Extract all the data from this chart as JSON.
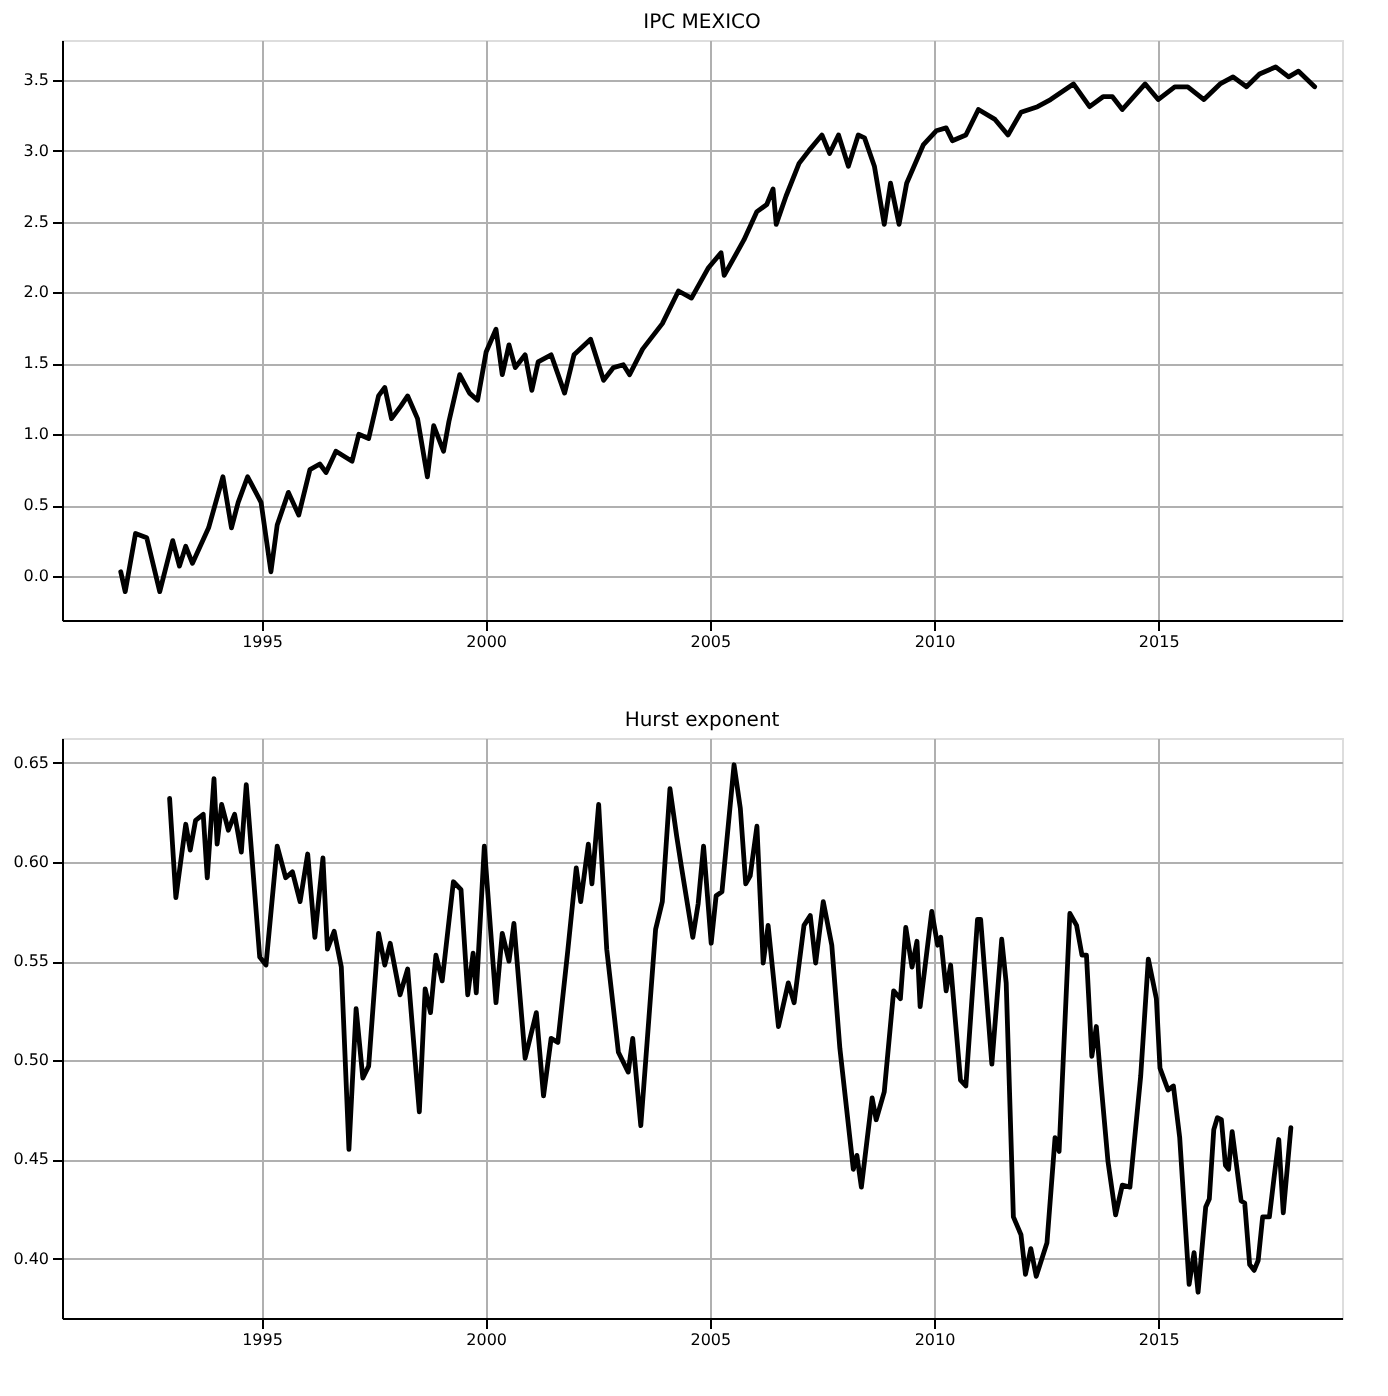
{
  "chart_data": [
    {
      "type": "line",
      "title": "IPC MEXICO",
      "grid": true,
      "xlim": [
        1990.55,
        2019.1
      ],
      "ylim": [
        -0.31,
        3.78
      ],
      "xticks": [
        1995,
        2000,
        2005,
        2010,
        2015
      ],
      "yticks": [
        {
          "value": 0,
          "label": "0.0"
        },
        {
          "value": 0.5,
          "label": "0.5"
        },
        {
          "value": 1,
          "label": "1.0"
        },
        {
          "value": 1.5,
          "label": "1.5"
        },
        {
          "value": 2,
          "label": "2.0"
        },
        {
          "value": 2.5,
          "label": "2.5"
        },
        {
          "value": 3,
          "label": "3.0"
        },
        {
          "value": 3.5,
          "label": "3.5"
        }
      ],
      "x": [
        1991.86,
        1991.96,
        1992.19,
        1992.44,
        1992.73,
        1993.02,
        1993.17,
        1993.31,
        1993.46,
        1993.82,
        1994.14,
        1994.33,
        1994.48,
        1994.69,
        1994.99,
        1995.21,
        1995.35,
        1995.6,
        1995.83,
        1996.08,
        1996.3,
        1996.44,
        1996.66,
        1997.02,
        1997.17,
        1997.39,
        1997.61,
        1997.75,
        1997.9,
        1998.11,
        1998.26,
        1998.48,
        1998.7,
        1998.84,
        1999.06,
        1999.18,
        1999.42,
        1999.64,
        1999.82,
        2000.01,
        2000.23,
        2000.37,
        2000.52,
        2000.66,
        2000.88,
        2001.03,
        2001.17,
        2001.46,
        2001.76,
        2001.97,
        2002.34,
        2002.63,
        2002.85,
        2003.07,
        2003.21,
        2003.5,
        2003.94,
        2004.3,
        2004.59,
        2004.96,
        2005.25,
        2005.32,
        2005.76,
        2006.05,
        2006.27,
        2006.41,
        2006.48,
        2006.7,
        2006.99,
        2007.21,
        2007.5,
        2007.67,
        2007.87,
        2008.09,
        2008.31,
        2008.45,
        2008.67,
        2008.89,
        2009.03,
        2009.22,
        2009.39,
        2009.76,
        2010.05,
        2010.27,
        2010.41,
        2010.71,
        2010.99,
        2011.36,
        2011.65,
        2011.94,
        2012.31,
        2012.6,
        2013.11,
        2013.47,
        2013.77,
        2013.98,
        2014.2,
        2014.71,
        2015.0,
        2015.37,
        2015.66,
        2016.02,
        2016.38,
        2016.67,
        2016.97,
        2017.26,
        2017.62,
        2017.91,
        2018.13,
        2018.49
      ],
      "series": [
        {
          "color": "#000000",
          "values": [
            0.03,
            -0.11,
            0.3,
            0.27,
            -0.11,
            0.25,
            0.07,
            0.21,
            0.09,
            0.34,
            0.7,
            0.34,
            0.52,
            0.7,
            0.52,
            0.03,
            0.36,
            0.59,
            0.43,
            0.75,
            0.79,
            0.73,
            0.88,
            0.81,
            1.0,
            0.97,
            1.27,
            1.33,
            1.11,
            1.2,
            1.27,
            1.11,
            0.7,
            1.06,
            0.88,
            1.09,
            1.42,
            1.29,
            1.24,
            1.58,
            1.74,
            1.42,
            1.63,
            1.47,
            1.56,
            1.31,
            1.51,
            1.56,
            1.29,
            1.56,
            1.67,
            1.38,
            1.47,
            1.49,
            1.42,
            1.6,
            1.78,
            2.01,
            1.96,
            2.17,
            2.28,
            2.12,
            2.37,
            2.57,
            2.62,
            2.73,
            2.48,
            2.68,
            2.91,
            3.0,
            3.11,
            2.98,
            3.11,
            2.89,
            3.11,
            3.09,
            2.89,
            2.48,
            2.77,
            2.48,
            2.77,
            3.04,
            3.14,
            3.16,
            3.07,
            3.11,
            3.29,
            3.22,
            3.11,
            3.27,
            3.31,
            3.36,
            3.47,
            3.31,
            3.38,
            3.38,
            3.29,
            3.47,
            3.36,
            3.45,
            3.45,
            3.36,
            3.47,
            3.52,
            3.45,
            3.54,
            3.59,
            3.52,
            3.56,
            3.45
          ]
        }
      ]
    },
    {
      "type": "line",
      "title": "Hurst exponent",
      "grid": true,
      "xlim": [
        1990.55,
        2019.1
      ],
      "ylim": [
        0.37,
        0.6625
      ],
      "xticks": [
        1995,
        2000,
        2005,
        2010,
        2015
      ],
      "yticks": [
        {
          "value": 0.4,
          "label": "0.40"
        },
        {
          "value": 0.45,
          "label": "0.45"
        },
        {
          "value": 0.5,
          "label": "0.50"
        },
        {
          "value": 0.55,
          "label": "0.55"
        },
        {
          "value": 0.6,
          "label": "0.60"
        },
        {
          "value": 0.65,
          "label": "0.65"
        }
      ],
      "x": [
        1992.95,
        1993.09,
        1993.31,
        1993.41,
        1993.53,
        1993.7,
        1993.79,
        1993.94,
        1994.01,
        1994.11,
        1994.26,
        1994.4,
        1994.55,
        1994.66,
        1994.96,
        1995.1,
        1995.35,
        1995.54,
        1995.69,
        1995.86,
        1996.03,
        1996.19,
        1996.37,
        1996.47,
        1996.62,
        1996.78,
        1996.95,
        1997.11,
        1997.26,
        1997.39,
        1997.61,
        1997.75,
        1997.87,
        1998.09,
        1998.26,
        1998.52,
        1998.65,
        1998.77,
        1998.89,
        1999.03,
        1999.28,
        1999.45,
        1999.6,
        1999.72,
        1999.79,
        1999.97,
        2000.23,
        2000.37,
        2000.52,
        2000.63,
        2000.88,
        2001.13,
        2001.29,
        2001.46,
        2001.61,
        2001.83,
        2002.02,
        2002.12,
        2002.29,
        2002.37,
        2002.52,
        2002.7,
        2002.96,
        2003.18,
        2003.28,
        2003.46,
        2003.79,
        2003.94,
        2004.11,
        2004.26,
        2004.37,
        2004.62,
        2004.74,
        2004.86,
        2005.03,
        2005.14,
        2005.27,
        2005.54,
        2005.68,
        2005.8,
        2005.9,
        2006.05,
        2006.19,
        2006.3,
        2006.53,
        2006.75,
        2006.88,
        2007.1,
        2007.24,
        2007.36,
        2007.53,
        2007.72,
        2007.9,
        2008.2,
        2008.28,
        2008.38,
        2008.62,
        2008.71,
        2008.89,
        2009.1,
        2009.25,
        2009.37,
        2009.51,
        2009.62,
        2009.69,
        2009.95,
        2010.08,
        2010.15,
        2010.27,
        2010.37,
        2010.59,
        2010.71,
        2010.97,
        2011.04,
        2011.29,
        2011.51,
        2011.61,
        2011.77,
        2011.94,
        2012.04,
        2012.16,
        2012.28,
        2012.52,
        2012.7,
        2012.79,
        2013.03,
        2013.18,
        2013.3,
        2013.4,
        2013.52,
        2013.62,
        2013.73,
        2013.88,
        2014.05,
        2014.2,
        2014.37,
        2014.61,
        2014.78,
        2014.96,
        2015.04,
        2015.22,
        2015.34,
        2015.48,
        2015.69,
        2015.8,
        2015.89,
        2016.06,
        2016.14,
        2016.24,
        2016.32,
        2016.41,
        2016.5,
        2016.57,
        2016.65,
        2016.85,
        2016.93,
        2017.04,
        2017.14,
        2017.23,
        2017.33,
        2017.48,
        2017.58,
        2017.69,
        2017.79,
        2017.96
      ],
      "series": [
        {
          "color": "#000000",
          "values": [
            0.632,
            0.582,
            0.619,
            0.606,
            0.621,
            0.624,
            0.592,
            0.642,
            0.609,
            0.629,
            0.616,
            0.624,
            0.605,
            0.639,
            0.552,
            0.548,
            0.608,
            0.592,
            0.595,
            0.58,
            0.604,
            0.562,
            0.602,
            0.556,
            0.565,
            0.547,
            0.455,
            0.526,
            0.491,
            0.497,
            0.564,
            0.548,
            0.559,
            0.533,
            0.546,
            0.474,
            0.536,
            0.524,
            0.553,
            0.54,
            0.59,
            0.586,
            0.533,
            0.554,
            0.534,
            0.608,
            0.529,
            0.564,
            0.55,
            0.569,
            0.501,
            0.524,
            0.482,
            0.511,
            0.509,
            0.555,
            0.597,
            0.58,
            0.609,
            0.589,
            0.629,
            0.556,
            0.504,
            0.494,
            0.511,
            0.467,
            0.566,
            0.58,
            0.637,
            0.613,
            0.597,
            0.562,
            0.579,
            0.608,
            0.559,
            0.583,
            0.585,
            0.649,
            0.627,
            0.589,
            0.593,
            0.618,
            0.549,
            0.568,
            0.517,
            0.539,
            0.529,
            0.568,
            0.573,
            0.549,
            0.58,
            0.558,
            0.506,
            0.445,
            0.452,
            0.436,
            0.481,
            0.47,
            0.484,
            0.535,
            0.531,
            0.567,
            0.547,
            0.56,
            0.527,
            0.575,
            0.558,
            0.562,
            0.535,
            0.548,
            0.49,
            0.487,
            0.571,
            0.571,
            0.498,
            0.561,
            0.539,
            0.421,
            0.412,
            0.392,
            0.405,
            0.391,
            0.408,
            0.461,
            0.454,
            0.574,
            0.568,
            0.553,
            0.553,
            0.502,
            0.517,
            0.487,
            0.449,
            0.422,
            0.437,
            0.436,
            0.492,
            0.551,
            0.531,
            0.496,
            0.485,
            0.487,
            0.461,
            0.387,
            0.403,
            0.383,
            0.426,
            0.43,
            0.465,
            0.471,
            0.47,
            0.447,
            0.445,
            0.464,
            0.429,
            0.428,
            0.397,
            0.394,
            0.399,
            0.421,
            0.421,
            0.44,
            0.46,
            0.423,
            0.466
          ]
        }
      ]
    }
  ]
}
